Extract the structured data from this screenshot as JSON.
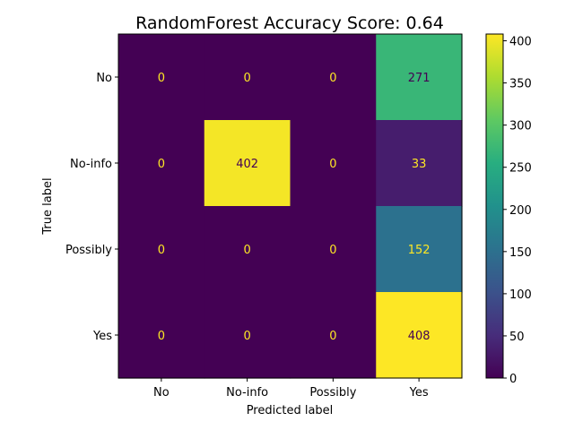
{
  "chart_data": {
    "type": "heatmap",
    "title": "RandomForest Accuracy Score: 0.64",
    "xlabel": "Predicted label",
    "ylabel": "True label",
    "x_categories": [
      "No",
      "No-info",
      "Possibly",
      "Yes"
    ],
    "y_categories": [
      "No",
      "No-info",
      "Possibly",
      "Yes"
    ],
    "values": [
      [
        0,
        0,
        0,
        271
      ],
      [
        0,
        402,
        0,
        33
      ],
      [
        0,
        0,
        0,
        152
      ],
      [
        0,
        0,
        0,
        408
      ]
    ],
    "colormap": "viridis",
    "colorbar": {
      "min": 0,
      "max": 408,
      "ticks": [
        0,
        50,
        100,
        150,
        200,
        250,
        300,
        350,
        400
      ]
    },
    "text_colors": {
      "on_light": "#440154",
      "on_dark": "#fde725"
    }
  }
}
